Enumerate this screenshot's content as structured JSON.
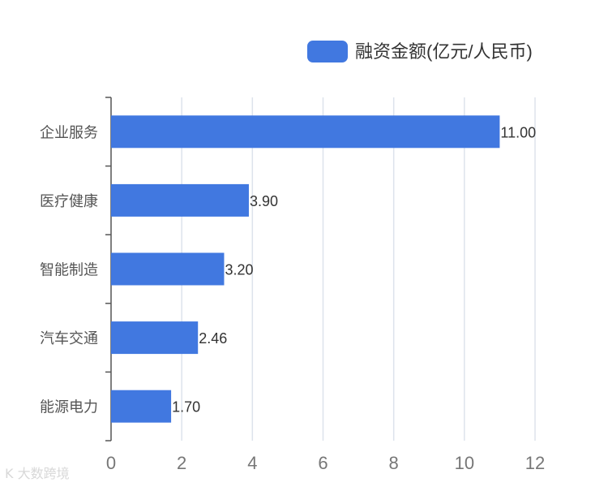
{
  "chart_data": {
    "type": "bar",
    "orientation": "horizontal",
    "categories": [
      "企业服务",
      "医疗健康",
      "智能制造",
      "汽车交通",
      "能源电力"
    ],
    "series": [
      {
        "name": "融资金额(亿元/人民币)",
        "values": [
          11.0,
          3.9,
          3.2,
          2.46,
          1.7
        ],
        "labels": [
          "11.00",
          "3.90",
          "3.20",
          "2.46",
          "1.70"
        ],
        "color": "#4178e0"
      }
    ],
    "xlim": [
      0,
      12
    ],
    "xticks": [
      0,
      2,
      4,
      6,
      8,
      10,
      12
    ],
    "grid": true,
    "legend_position": "top-right"
  },
  "watermark": "K 大数跨境"
}
